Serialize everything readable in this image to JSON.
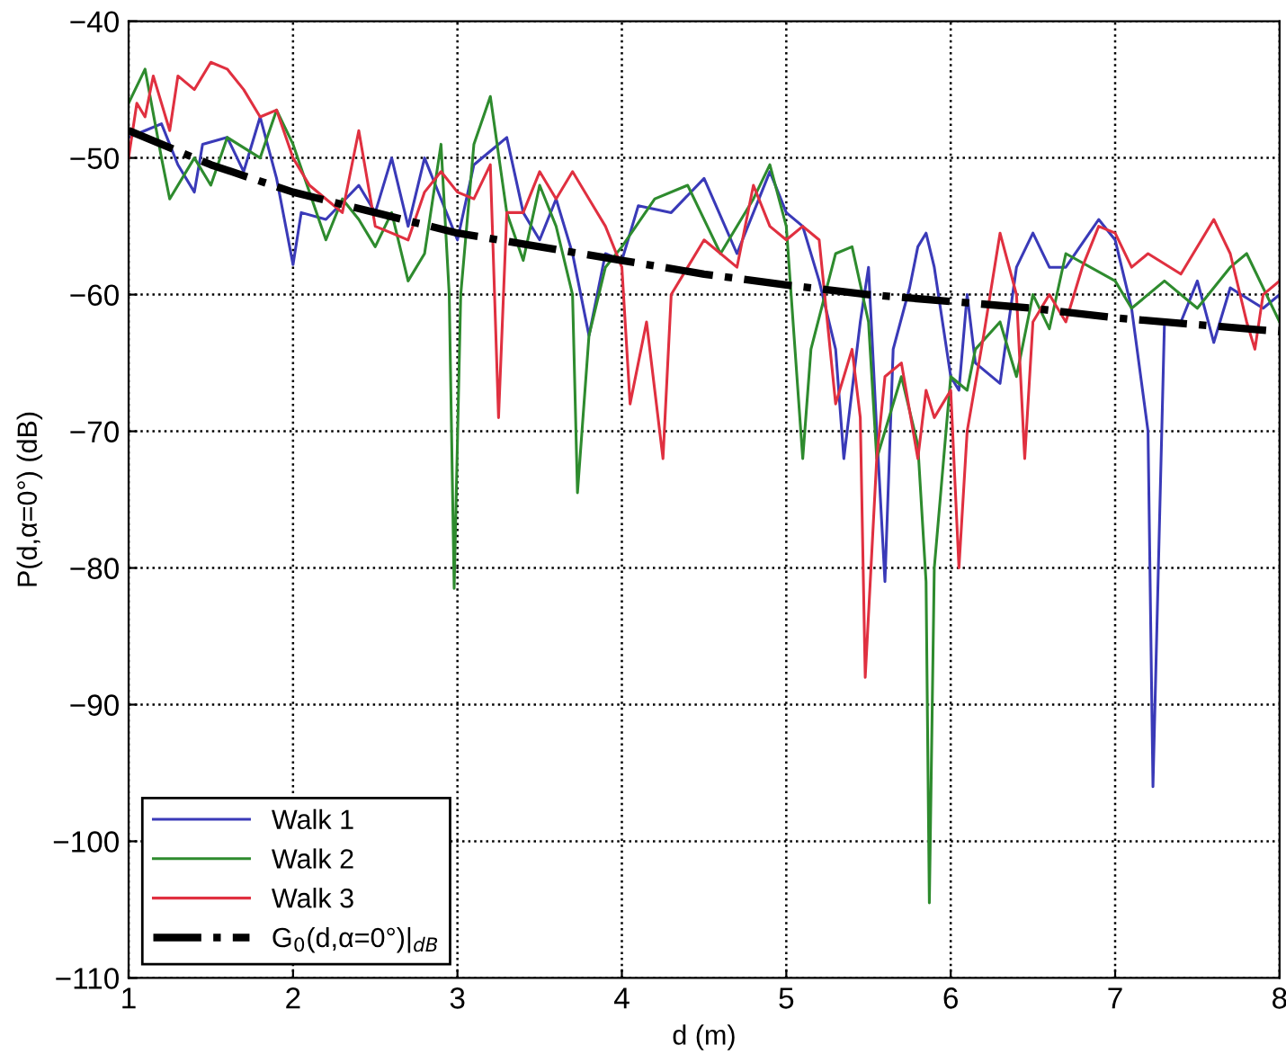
{
  "chart_data": {
    "type": "line",
    "xlabel": "d (m)",
    "ylabel": "P(d,α=0°) (dB)",
    "xlim": [
      1,
      8
    ],
    "xticks": [
      1,
      2,
      3,
      4,
      5,
      6,
      7,
      8
    ],
    "ylim": [
      -110,
      -40
    ],
    "yticks": [
      -110,
      -100,
      -90,
      -80,
      -70,
      -60,
      -50,
      -40
    ],
    "grid": true,
    "legend": "bottom left",
    "marker": "none",
    "series": [
      {
        "name": "Walk 1",
        "color": "#3a3ab8",
        "line_style": "solid",
        "x": [
          1.0,
          1.1,
          1.2,
          1.3,
          1.4,
          1.45,
          1.6,
          1.7,
          1.8,
          1.9,
          2.0,
          2.05,
          2.2,
          2.4,
          2.5,
          2.6,
          2.7,
          2.8,
          2.9,
          3.0,
          3.1,
          3.2,
          3.3,
          3.4,
          3.5,
          3.6,
          3.7,
          3.8,
          3.9,
          4.0,
          4.1,
          4.3,
          4.5,
          4.7,
          4.9,
          5.0,
          5.1,
          5.2,
          5.3,
          5.35,
          5.45,
          5.5,
          5.55,
          5.6,
          5.65,
          5.75,
          5.8,
          5.85,
          5.9,
          6.0,
          6.05,
          6.1,
          6.15,
          6.3,
          6.4,
          6.5,
          6.6,
          6.7,
          6.9,
          7.0,
          7.1,
          7.2,
          7.23,
          7.3,
          7.4,
          7.5,
          7.6,
          7.7,
          7.9,
          8.0
        ],
        "values": [
          -48.5,
          -48,
          -47.5,
          -50.5,
          -52.5,
          -49,
          -48.5,
          -51,
          -47,
          -51.5,
          -57.8,
          -54,
          -54.5,
          -52,
          -54,
          -50,
          -55,
          -50,
          -53,
          -56,
          -50.5,
          -49.5,
          -48.5,
          -54,
          -56,
          -53,
          -57,
          -63,
          -57,
          -57.5,
          -53.5,
          -54,
          -51.5,
          -57,
          -51,
          -54,
          -55,
          -59,
          -64,
          -72,
          -62,
          -58,
          -70,
          -81,
          -64,
          -59.5,
          -56.5,
          -55.5,
          -58,
          -66,
          -67,
          -60,
          -65,
          -66.5,
          -58,
          -55.5,
          -58,
          -58,
          -54.5,
          -56,
          -61,
          -70,
          -96,
          -62,
          -62,
          -59,
          -63.5,
          -59.5,
          -61,
          -60
        ]
      },
      {
        "name": "Walk 2",
        "color": "#2e8b2e",
        "line_style": "solid",
        "x": [
          1.0,
          1.1,
          1.2,
          1.25,
          1.4,
          1.5,
          1.6,
          1.8,
          1.9,
          2.0,
          2.2,
          2.3,
          2.4,
          2.5,
          2.6,
          2.7,
          2.8,
          2.9,
          2.95,
          2.98,
          3.02,
          3.1,
          3.2,
          3.3,
          3.4,
          3.5,
          3.6,
          3.7,
          3.73,
          3.8,
          3.9,
          4.0,
          4.2,
          4.4,
          4.6,
          4.8,
          4.9,
          5.0,
          5.1,
          5.15,
          5.3,
          5.4,
          5.5,
          5.55,
          5.7,
          5.8,
          5.85,
          5.87,
          5.9,
          6.0,
          6.1,
          6.15,
          6.3,
          6.4,
          6.5,
          6.6,
          6.7,
          7.0,
          7.1,
          7.3,
          7.5,
          7.7,
          7.8,
          8.0
        ],
        "values": [
          -46,
          -43.5,
          -50,
          -53,
          -50,
          -52,
          -48.5,
          -50,
          -46.5,
          -49,
          -56,
          -53,
          -54.5,
          -56.5,
          -54,
          -59,
          -57,
          -49,
          -60,
          -81.5,
          -60,
          -49,
          -45.5,
          -54,
          -57.5,
          -52,
          -55,
          -60,
          -74.5,
          -63,
          -58,
          -56.5,
          -53,
          -52,
          -57,
          -53,
          -50.5,
          -55,
          -72,
          -64,
          -57,
          -56.5,
          -62,
          -72,
          -66,
          -71,
          -81,
          -104.5,
          -80,
          -66,
          -67,
          -64,
          -62,
          -66,
          -60,
          -62.5,
          -57,
          -59,
          -61,
          -59,
          -61,
          -58,
          -57,
          -62
        ]
      },
      {
        "name": "Walk 3",
        "color": "#e03040",
        "line_style": "solid",
        "x": [
          1.0,
          1.05,
          1.1,
          1.15,
          1.25,
          1.3,
          1.4,
          1.5,
          1.6,
          1.7,
          1.8,
          1.9,
          2.0,
          2.1,
          2.2,
          2.3,
          2.35,
          2.4,
          2.5,
          2.6,
          2.7,
          2.8,
          2.9,
          3.0,
          3.1,
          3.2,
          3.25,
          3.3,
          3.4,
          3.5,
          3.6,
          3.7,
          3.8,
          3.9,
          4.0,
          4.05,
          4.15,
          4.25,
          4.3,
          4.5,
          4.7,
          4.8,
          4.9,
          5.0,
          5.1,
          5.2,
          5.25,
          5.3,
          5.4,
          5.45,
          5.48,
          5.55,
          5.6,
          5.7,
          5.8,
          5.85,
          5.9,
          6.0,
          6.05,
          6.1,
          6.2,
          6.3,
          6.4,
          6.45,
          6.5,
          6.6,
          6.7,
          6.8,
          6.9,
          7.0,
          7.1,
          7.2,
          7.4,
          7.6,
          7.7,
          7.8,
          7.85,
          7.9,
          8.0
        ],
        "values": [
          -50,
          -46,
          -47,
          -44,
          -48,
          -44,
          -45,
          -43,
          -43.5,
          -45,
          -47,
          -46.5,
          -50,
          -52,
          -53,
          -54,
          -51,
          -48,
          -55,
          -55.5,
          -56,
          -52.5,
          -51,
          -52.5,
          -53,
          -50.5,
          -69,
          -54,
          -54,
          -51,
          -53,
          -51,
          -53,
          -55,
          -58,
          -68,
          -62,
          -72,
          -60,
          -56,
          -58,
          -52,
          -55,
          -56,
          -55,
          -56,
          -62,
          -68,
          -64,
          -69,
          -88,
          -72,
          -66,
          -65,
          -72,
          -67,
          -69,
          -67,
          -80,
          -70,
          -63,
          -55.5,
          -60,
          -72,
          -62,
          -60,
          -62,
          -58,
          -55,
          -55.5,
          -58,
          -57,
          -58.5,
          -54.5,
          -57,
          -62,
          -64,
          -60,
          -59
        ]
      },
      {
        "name": "G$_{0}$(d,α=0°)|$_{dB}$",
        "color": "#000000",
        "line_style": "dashdot",
        "x": [
          1,
          1.5,
          2,
          2.5,
          3,
          3.5,
          4,
          4.5,
          5,
          5.5,
          6,
          6.5,
          7,
          7.5,
          8
        ],
        "values": [
          -48,
          -50.5,
          -52.5,
          -54,
          -55.5,
          -56.5,
          -57.5,
          -58.5,
          -59.3,
          -60,
          -60.5,
          -61,
          -61.7,
          -62.2,
          -62.7
        ]
      }
    ]
  }
}
